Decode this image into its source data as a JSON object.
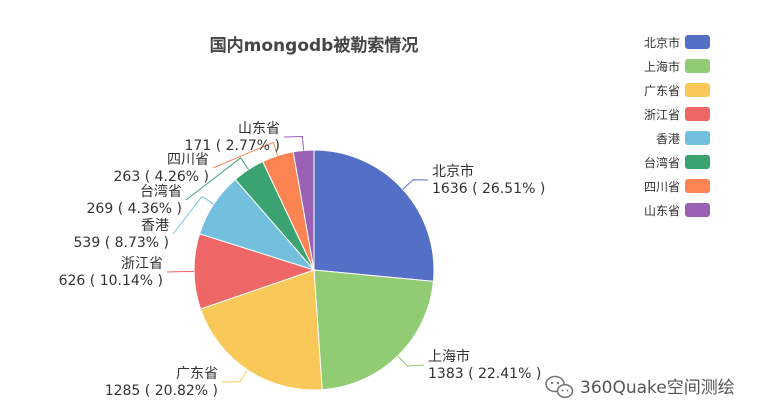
{
  "chart_data": {
    "type": "pie",
    "title": "国内mongodb被勒索情况",
    "legend_position": "top-right",
    "slices": [
      {
        "name": "北京市",
        "value": 1636,
        "percent_label": "1636 ( 26.51% )",
        "color": "#5470c6"
      },
      {
        "name": "上海市",
        "value": 1383,
        "percent_label": "1383 ( 22.41% )",
        "color": "#91cc75"
      },
      {
        "name": "广东省",
        "value": 1285,
        "percent_label": "1285 ( 20.82% )",
        "color": "#fac858"
      },
      {
        "name": "浙江省",
        "value": 626,
        "percent_label": "626 ( 10.14% )",
        "color": "#ee6666"
      },
      {
        "name": "香港",
        "value": 539,
        "percent_label": "539 ( 8.73% )",
        "color": "#73c0de"
      },
      {
        "name": "台湾省",
        "value": 269,
        "percent_label": "269 ( 4.36% )",
        "color": "#3ba272"
      },
      {
        "name": "四川省",
        "value": 263,
        "percent_label": "263 ( 4.26% )",
        "color": "#fc8452"
      },
      {
        "name": "山东省",
        "value": 171,
        "percent_label": "171 ( 2.77% )",
        "color": "#9a60b4"
      }
    ]
  },
  "watermark": {
    "text": "360Quake空间测绘",
    "icon": "wechat-icon"
  }
}
